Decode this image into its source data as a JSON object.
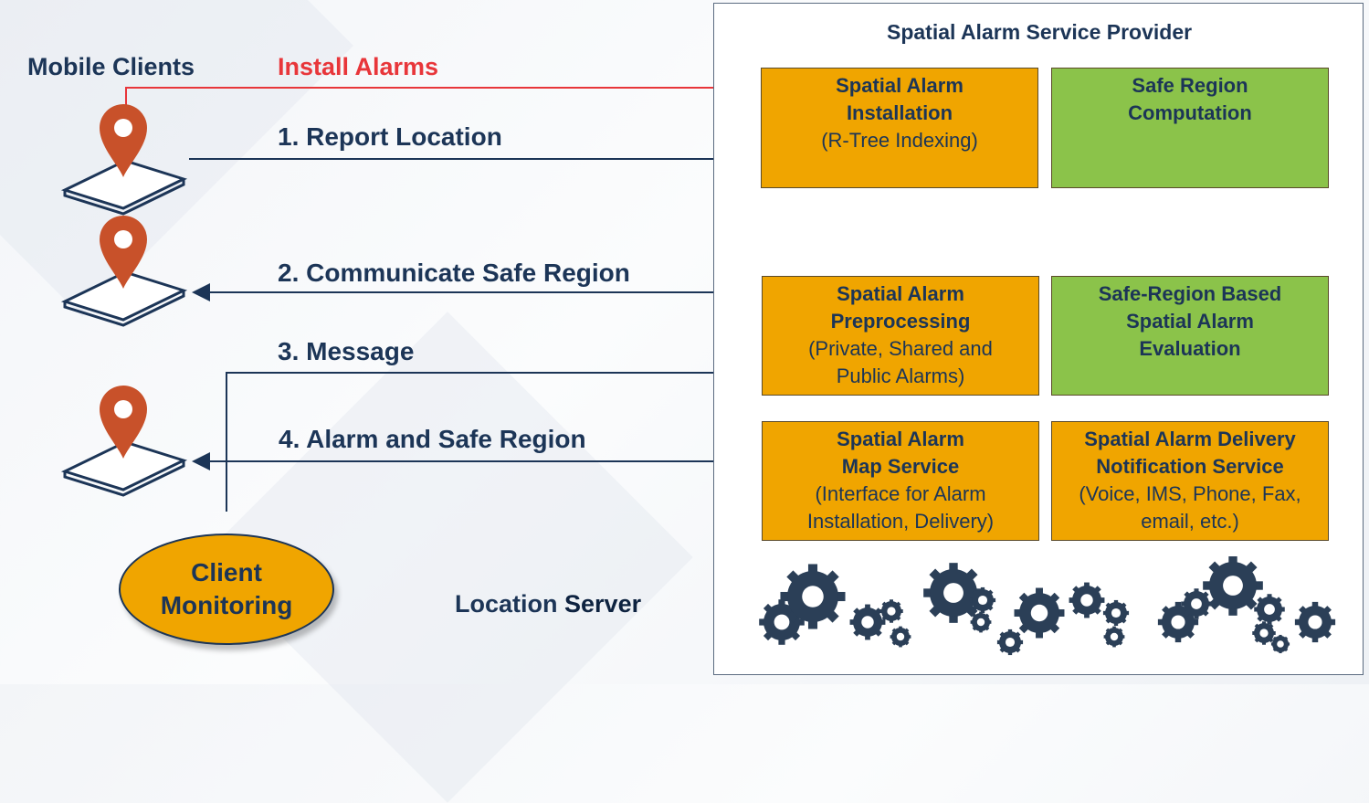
{
  "left_header": "Mobile Clients",
  "install_label": "Install Alarms",
  "arrows": {
    "report": "1. Report Location",
    "communicate": "2. Communicate Safe Region",
    "message": "3. Message",
    "alarm": "4. Alarm and Safe Region"
  },
  "client_monitoring": {
    "line1": "Client",
    "line2": "Monitoring"
  },
  "location_server": {
    "word1": "Location",
    "word2": "Server"
  },
  "provider": {
    "title": "Spatial Alarm Service Provider",
    "installation": {
      "line1": "Spatial Alarm",
      "line2": "Installation",
      "detail": "(R-Tree Indexing)"
    },
    "safe_region_comp": {
      "line1": "Safe Region",
      "line2": "Computation"
    },
    "preprocessing": {
      "line1": "Spatial Alarm",
      "line2": "Preprocessing",
      "detail1": "(Private, Shared and",
      "detail2": "Public Alarms)"
    },
    "evaluation": {
      "line1": "Safe-Region Based",
      "line2": "Spatial Alarm",
      "line3": "Evaluation"
    },
    "map_service": {
      "line1": "Spatial Alarm",
      "line2": "Map Service",
      "detail1": "(Interface for Alarm",
      "detail2": "Installation, Delivery)"
    },
    "delivery": {
      "line1": "Spatial Alarm Delivery",
      "line2": "Notification Service",
      "detail1": "(Voice, IMS, Phone, Fax,",
      "detail2": "email, etc.)"
    }
  },
  "colors": {
    "navy": "#1c3557",
    "red": "#e8363a",
    "orange": "#f0a500",
    "green": "#8bc34a",
    "pin": "#c8512a"
  }
}
